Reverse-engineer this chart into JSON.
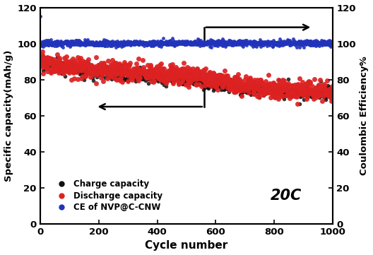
{
  "xlabel": "Cycle number",
  "ylabel_left": "Specific capacity(mAh/g)",
  "ylabel_right": "Coulombic Efficiency%",
  "xlim": [
    0,
    1000
  ],
  "ylim_left": [
    0,
    120
  ],
  "ylim_right": [
    0,
    120
  ],
  "yticks_left": [
    0,
    20,
    40,
    60,
    80,
    100,
    120
  ],
  "yticks_right": [
    0,
    20,
    40,
    60,
    80,
    100,
    120
  ],
  "xticks": [
    0,
    200,
    400,
    600,
    800,
    1000
  ],
  "annotation_20C": "20C",
  "charge_color": "#111111",
  "discharge_color": "#dd2222",
  "ce_color": "#2233bb",
  "legend_charge": "Charge capacity",
  "legend_discharge": "Discharge capacity",
  "legend_ce": "CE of NVP@C-CNW",
  "ms_discharge": 5.0,
  "ms_charge": 4.0,
  "ms_ce": 3.5,
  "arrow_lw": 1.8,
  "arrow_mutation_scale": 14
}
